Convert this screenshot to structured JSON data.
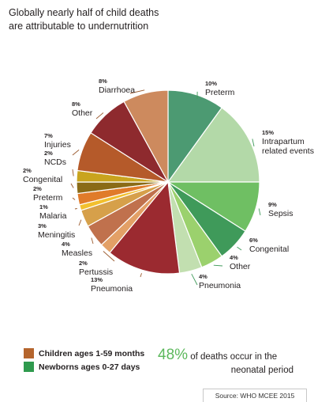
{
  "title_lines": [
    "Globally nearly half of child deaths",
    "are attributable to undernutrition"
  ],
  "chart_data": {
    "type": "pie",
    "slices": [
      {
        "label": "Preterm",
        "value": 10,
        "pct": "10%",
        "group": "newborn",
        "color": "#4c9a72",
        "label_lines": [
          "Preterm"
        ]
      },
      {
        "label": "Intrapartum related events",
        "value": 15,
        "pct": "15%",
        "group": "newborn",
        "color": "#b3d9a8",
        "label_lines": [
          "Intrapartum",
          "related events"
        ]
      },
      {
        "label": "Sepsis",
        "value": 9,
        "pct": "9%",
        "group": "newborn",
        "color": "#6fbf63",
        "label_lines": [
          "Sepsis"
        ]
      },
      {
        "label": "Congenital",
        "value": 6,
        "pct": "6%",
        "group": "newborn",
        "color": "#3f9a5a",
        "label_lines": [
          "Congenital"
        ]
      },
      {
        "label": "Other",
        "value": 4,
        "pct": "4%",
        "group": "newborn",
        "color": "#9bd16d",
        "label_lines": [
          "Other"
        ]
      },
      {
        "label": "Pneumonia",
        "value": 4,
        "pct": "4%",
        "group": "newborn",
        "color": "#c2dfb0",
        "label_lines": [
          "Pneumonia"
        ]
      },
      {
        "label": "Pneumonia",
        "value": 13,
        "pct": "13%",
        "group": "child",
        "color": "#9b2a30",
        "label_lines": [
          "Pneumonia"
        ]
      },
      {
        "label": "Pertussis",
        "value": 2,
        "pct": "2%",
        "group": "child",
        "color": "#e3a066",
        "label_lines": [
          "Pertussis"
        ]
      },
      {
        "label": "Measles",
        "value": 4,
        "pct": "4%",
        "group": "child",
        "color": "#c0714d",
        "label_lines": [
          "Measles"
        ]
      },
      {
        "label": "Meningitis",
        "value": 3,
        "pct": "3%",
        "group": "child",
        "color": "#d6a04a",
        "label_lines": [
          "Meningitis"
        ]
      },
      {
        "label": "Malaria",
        "value": 1,
        "pct": "1%",
        "group": "child",
        "color": "#f2c02e",
        "label_lines": [
          "Malaria"
        ]
      },
      {
        "label": "Preterm",
        "value": 2,
        "pct": "2%",
        "group": "child",
        "color": "#e07b2a",
        "label_lines": [
          "Preterm"
        ]
      },
      {
        "label": "Congenital",
        "value": 2,
        "pct": "2%",
        "group": "child",
        "color": "#8a6b17",
        "label_lines": [
          "Congenital"
        ]
      },
      {
        "label": "NCDs",
        "value": 2,
        "pct": "2%",
        "group": "child",
        "color": "#c9a41e",
        "label_lines": [
          "NCDs"
        ]
      },
      {
        "label": "Injuries",
        "value": 7,
        "pct": "7%",
        "group": "child",
        "color": "#b55a2a",
        "label_lines": [
          "Injuries"
        ]
      },
      {
        "label": "Other",
        "value": 8,
        "pct": "8%",
        "group": "child",
        "color": "#8e2a2e",
        "label_lines": [
          "Other"
        ]
      },
      {
        "label": "Diarrhoea",
        "value": 8,
        "pct": "8%",
        "group": "child",
        "color": "#cd8a5e",
        "label_lines": [
          "Diarrhoea"
        ]
      }
    ],
    "group_colors": {
      "child": "#9b5a2e",
      "newborn": "#3f9a5a"
    }
  },
  "legend": {
    "child": {
      "label": "Children ages 1-59 months",
      "color": "#b5652d"
    },
    "newborn": {
      "label": "Newborns ages 0-27 days",
      "color": "#2f9a4e"
    }
  },
  "stat": {
    "percent": "48%",
    "line1_rest": " of deaths occur in the",
    "line2": "neonatal period"
  },
  "source": "Source: WHO MCEE 2015"
}
